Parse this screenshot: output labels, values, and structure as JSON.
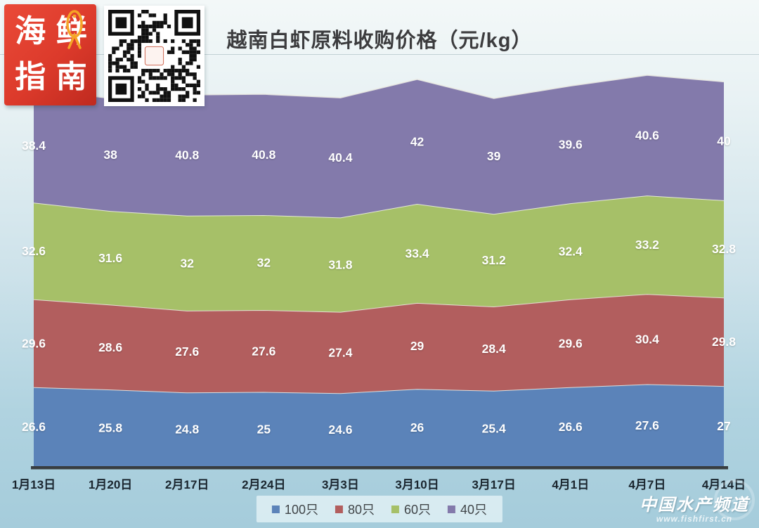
{
  "title": "越南白虾原料收购价格（元/kg）",
  "logo": {
    "name": "海鲜指南",
    "chars": [
      "海",
      "鲜",
      "指",
      "南"
    ]
  },
  "watermark": {
    "text": "中国水产频道",
    "url": "www.fishfirst.cn"
  },
  "chart_data": {
    "type": "area",
    "stacked": true,
    "title": "越南白虾原料收购价格（元/kg）",
    "unit": "元/kg",
    "categories": [
      "1月13日",
      "1月20日",
      "2月17日",
      "2月24日",
      "3月3日",
      "3月10日",
      "3月17日",
      "4月1日",
      "4月7日",
      "4月14日"
    ],
    "series": [
      {
        "name": "100只",
        "color": "#5b83b9",
        "values": [
          26.6,
          25.8,
          24.8,
          25,
          24.6,
          26,
          25.4,
          26.6,
          27.6,
          27
        ]
      },
      {
        "name": "80只",
        "color": "#b25e5e",
        "values": [
          29.6,
          28.6,
          27.6,
          27.6,
          27.4,
          29,
          28.4,
          29.6,
          30.4,
          29.8
        ]
      },
      {
        "name": "60只",
        "color": "#a6c068",
        "values": [
          32.6,
          31.6,
          32,
          32,
          31.8,
          33.4,
          31.2,
          32.4,
          33.2,
          32.8
        ]
      },
      {
        "name": "40只",
        "color": "#837aab",
        "values": [
          38.4,
          38,
          40.8,
          40.8,
          40.4,
          42,
          39,
          39.6,
          40.6,
          40
        ]
      }
    ],
    "data_labels": true,
    "label_color": "#ffffff",
    "axis_label_color": "#1a252e",
    "legend_position": "bottom",
    "grid": false,
    "ylim": [
      0,
      139
    ]
  }
}
